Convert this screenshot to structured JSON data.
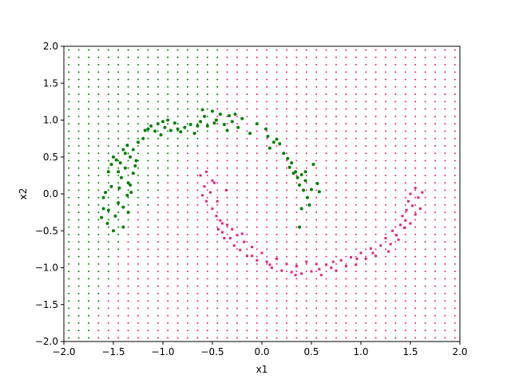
{
  "chart_data": {
    "type": "scatter",
    "title": "",
    "xlabel": "x1",
    "ylabel": "x2",
    "xlim": [
      -2.0,
      2.0
    ],
    "ylim": [
      -2.0,
      2.0
    ],
    "xticks": [
      "−2.0",
      "−1.5",
      "−1.0",
      "−0.5",
      "0.0",
      "0.5",
      "1.0",
      "1.5",
      "2.0"
    ],
    "yticks": [
      "−2.0",
      "−1.5",
      "−1.0",
      "−0.5",
      "0.0",
      "0.5",
      "1.0",
      "1.5",
      "2.0"
    ],
    "grid": false,
    "legend": "none",
    "colors": {
      "class_0": "#008000",
      "class_1": "#e8207a"
    },
    "decision_grid": {
      "x_start": -1.95,
      "x_step": 0.1,
      "x_count": 40,
      "y_start": -1.95,
      "y_step": 0.1,
      "y_count": 40,
      "note_boundary_x_by_y": [
        [
          -2.0,
          -1.65
        ],
        [
          -1.8,
          -1.65
        ],
        [
          -1.6,
          -1.55
        ],
        [
          -1.4,
          -1.55
        ],
        [
          -1.2,
          -1.45
        ],
        [
          -1.0,
          -1.45
        ],
        [
          -0.8,
          -1.35
        ],
        [
          -0.6,
          -1.35
        ],
        [
          -0.4,
          -1.25
        ],
        [
          -0.2,
          -1.05
        ],
        [
          0.0,
          -0.95
        ],
        [
          0.2,
          -0.85
        ],
        [
          0.4,
          -0.75
        ],
        [
          0.6,
          -0.55
        ],
        [
          0.8,
          -0.45
        ],
        [
          1.0,
          -0.45
        ],
        [
          1.2,
          -0.35
        ],
        [
          1.4,
          -0.35
        ],
        [
          1.6,
          -0.35
        ],
        [
          1.8,
          -0.35
        ],
        [
          2.0,
          -0.35
        ]
      ]
    },
    "series": [
      {
        "class": 0,
        "points": [
          [
            -1.62,
            -0.32
          ],
          [
            -1.6,
            -0.2
          ],
          [
            -1.58,
            0.02
          ],
          [
            -1.6,
            -0.05
          ],
          [
            -1.55,
            -0.22
          ],
          [
            -1.52,
            0.1
          ],
          [
            -1.5,
            -0.5
          ],
          [
            -1.48,
            -0.3
          ],
          [
            -1.45,
            -0.12
          ],
          [
            -1.44,
            0.08
          ],
          [
            -1.42,
            0.22
          ],
          [
            -1.4,
            -0.18
          ],
          [
            -1.38,
            0.35
          ],
          [
            -1.36,
            -0.02
          ],
          [
            -1.35,
            -0.25
          ],
          [
            -1.33,
            0.12
          ],
          [
            -1.55,
            0.3
          ],
          [
            -1.52,
            0.4
          ],
          [
            -1.5,
            0.5
          ],
          [
            -1.47,
            0.46
          ],
          [
            -1.45,
            0.3
          ],
          [
            -1.43,
            0.42
          ],
          [
            -1.4,
            0.6
          ],
          [
            -1.38,
            0.55
          ],
          [
            -1.36,
            0.66
          ],
          [
            -1.33,
            0.5
          ],
          [
            -1.3,
            0.6
          ],
          [
            -1.28,
            0.38
          ],
          [
            -1.3,
            0.28
          ],
          [
            -1.27,
            0.45
          ],
          [
            -1.25,
            0.7
          ],
          [
            -1.2,
            0.75
          ],
          [
            -1.15,
            0.88
          ],
          [
            -1.12,
            0.92
          ],
          [
            -1.08,
            0.85
          ],
          [
            -1.05,
            0.95
          ],
          [
            -1.02,
            0.8
          ],
          [
            -0.98,
            0.9
          ],
          [
            -0.95,
            1.0
          ],
          [
            -0.92,
            0.86
          ],
          [
            -0.88,
            0.96
          ],
          [
            -0.82,
            0.84
          ],
          [
            -0.78,
            0.9
          ],
          [
            -0.72,
            0.94
          ],
          [
            -0.68,
            0.82
          ],
          [
            -0.62,
            0.98
          ],
          [
            -0.58,
            1.05
          ],
          [
            -0.55,
            0.92
          ],
          [
            -0.5,
            1.12
          ],
          [
            -0.46,
            1.0
          ],
          [
            -0.42,
            1.08
          ],
          [
            -0.38,
            0.94
          ],
          [
            -0.33,
            1.06
          ],
          [
            -0.3,
            0.98
          ],
          [
            -0.27,
            1.08
          ],
          [
            -0.24,
            0.9
          ],
          [
            -0.2,
            1.02
          ],
          [
            -0.12,
            0.82
          ],
          [
            -0.05,
            0.95
          ],
          [
            0.04,
            0.88
          ],
          [
            0.08,
            0.62
          ],
          [
            0.12,
            0.7
          ],
          [
            0.15,
            0.74
          ],
          [
            0.18,
            0.68
          ],
          [
            0.22,
            0.55
          ],
          [
            0.26,
            0.48
          ],
          [
            0.3,
            0.42
          ],
          [
            0.34,
            0.3
          ],
          [
            0.36,
            0.22
          ],
          [
            0.38,
            0.12
          ],
          [
            0.4,
            0.26
          ],
          [
            0.42,
            0.05
          ],
          [
            0.44,
            0.18
          ],
          [
            0.46,
            -0.05
          ],
          [
            0.48,
            -0.15
          ],
          [
            0.5,
            0.06
          ],
          [
            0.52,
            0.4
          ],
          [
            0.56,
            0.14
          ],
          [
            0.58,
            0.03
          ],
          [
            0.38,
            -0.45
          ],
          [
            0.4,
            -0.2
          ],
          [
            -1.4,
            -0.45
          ],
          [
            -1.56,
            -0.4
          ],
          [
            -1.35,
            0.15
          ],
          [
            -1.32,
            0.02
          ],
          [
            -0.65,
            0.92
          ],
          [
            -0.48,
            0.96
          ],
          [
            -0.85,
            0.88
          ],
          [
            -1.0,
            0.98
          ],
          [
            -1.18,
            0.86
          ],
          [
            -0.6,
            1.14
          ],
          [
            -0.35,
            0.86
          ],
          [
            0.32,
            0.28
          ],
          [
            0.28,
            0.36
          ],
          [
            0.06,
            0.78
          ],
          [
            0.44,
            0.3
          ]
        ]
      },
      {
        "class": 1,
        "points": [
          [
            -0.62,
            0.25
          ],
          [
            -0.58,
            0.1
          ],
          [
            -0.6,
            -0.02
          ],
          [
            -0.56,
            -0.1
          ],
          [
            -0.52,
            0.02
          ],
          [
            -0.5,
            -0.2
          ],
          [
            -0.48,
            0.15
          ],
          [
            -0.46,
            -0.3
          ],
          [
            -0.44,
            -0.48
          ],
          [
            -0.42,
            -0.36
          ],
          [
            -0.4,
            -0.52
          ],
          [
            -0.38,
            -0.6
          ],
          [
            -0.35,
            -0.42
          ],
          [
            -0.32,
            -0.6
          ],
          [
            -0.28,
            -0.7
          ],
          [
            -0.25,
            -0.56
          ],
          [
            -0.22,
            -0.76
          ],
          [
            -0.18,
            -0.65
          ],
          [
            -0.15,
            -0.84
          ],
          [
            -0.1,
            -0.72
          ],
          [
            -0.05,
            -0.9
          ],
          [
            0.0,
            -0.8
          ],
          [
            0.05,
            -0.92
          ],
          [
            0.1,
            -1.0
          ],
          [
            0.15,
            -0.88
          ],
          [
            0.2,
            -1.04
          ],
          [
            0.25,
            -0.95
          ],
          [
            0.3,
            -1.06
          ],
          [
            0.35,
            -0.98
          ],
          [
            0.4,
            -1.08
          ],
          [
            0.45,
            -0.92
          ],
          [
            0.5,
            -1.05
          ],
          [
            0.55,
            -0.95
          ],
          [
            0.6,
            -1.1
          ],
          [
            0.65,
            -0.96
          ],
          [
            0.7,
            -1.0
          ],
          [
            0.75,
            -1.04
          ],
          [
            0.8,
            -0.9
          ],
          [
            0.85,
            -0.98
          ],
          [
            0.9,
            -0.86
          ],
          [
            0.95,
            -0.96
          ],
          [
            1.0,
            -0.8
          ],
          [
            1.05,
            -0.88
          ],
          [
            1.1,
            -0.74
          ],
          [
            1.15,
            -0.84
          ],
          [
            1.2,
            -0.7
          ],
          [
            1.25,
            -0.6
          ],
          [
            1.3,
            -0.68
          ],
          [
            1.32,
            -0.5
          ],
          [
            1.36,
            -0.56
          ],
          [
            1.4,
            -0.42
          ],
          [
            1.42,
            -0.3
          ],
          [
            1.46,
            -0.22
          ],
          [
            1.48,
            -0.1
          ],
          [
            1.5,
            0.0
          ],
          [
            1.52,
            -0.16
          ],
          [
            1.55,
            0.08
          ],
          [
            1.58,
            -0.05
          ],
          [
            1.6,
            -0.2
          ],
          [
            1.62,
            0.02
          ],
          [
            1.5,
            -0.4
          ],
          [
            1.45,
            -0.36
          ],
          [
            1.55,
            -0.28
          ],
          [
            1.38,
            -0.62
          ],
          [
            1.28,
            -0.78
          ],
          [
            -0.56,
            0.3
          ],
          [
            -0.5,
            0.18
          ],
          [
            -0.45,
            -0.1
          ],
          [
            -0.4,
            -0.4
          ],
          [
            -0.36,
            0.05
          ],
          [
            -0.3,
            -0.48
          ],
          [
            -0.2,
            -0.54
          ],
          [
            -0.1,
            -0.84
          ],
          [
            0.08,
            -0.96
          ],
          [
            0.34,
            -1.1
          ],
          [
            0.58,
            -1.02
          ],
          [
            0.72,
            -0.92
          ],
          [
            0.96,
            -0.88
          ],
          [
            1.12,
            -0.8
          ],
          [
            1.44,
            -0.46
          ]
        ]
      }
    ]
  }
}
